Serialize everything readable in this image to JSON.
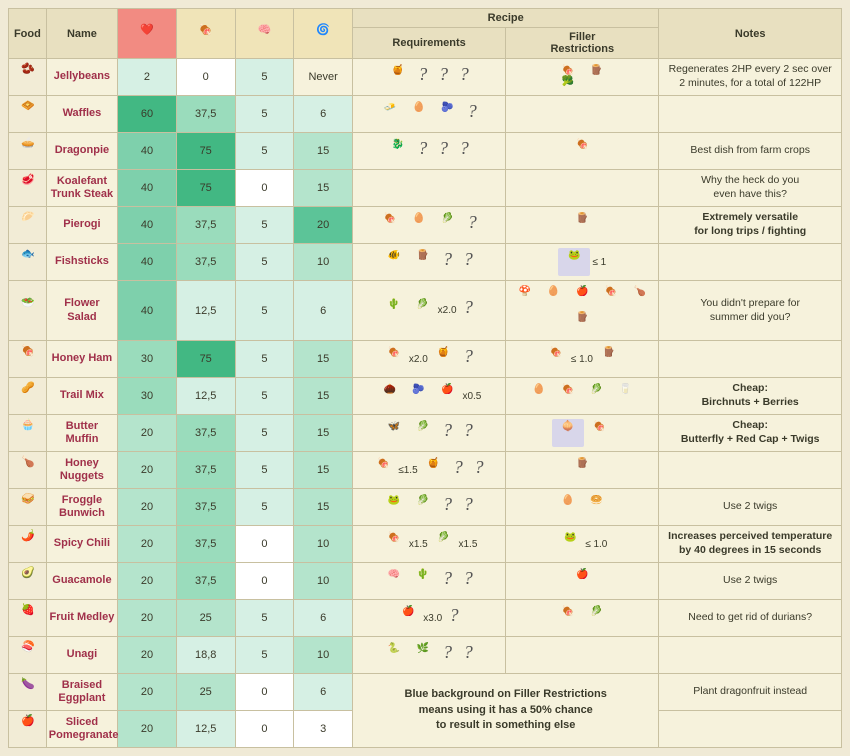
{
  "headers": {
    "food": "Food",
    "name": "Name",
    "recipe": "Recipe",
    "requirements": "Requirements",
    "filler_restrictions": "Filler\nRestrictions",
    "notes": "Notes"
  },
  "stat_icons": {
    "health": {
      "emoji": "❤️",
      "bg": "#f28b82"
    },
    "hunger": {
      "emoji": "🍖",
      "bg": "#f0e4b8"
    },
    "sanity": {
      "emoji": "🧠",
      "bg": "#f0e4b8"
    },
    "perish": {
      "emoji": "🌀",
      "bg": "#f0e4b8"
    }
  },
  "heat_palette": {
    "0": "#ffffff",
    "low": "#d6f0e4",
    "mid": "#b4e4cc",
    "midhigh": "#9adcbc",
    "high": "#7ed0ac",
    "vhigh": "#5cc498",
    "max": "#42b883"
  },
  "merged_note": "Blue background on Filler Restrictions\nmeans using it has a 50% chance\nto result in something else",
  "rows": [
    {
      "name": "Jellybeans",
      "food_icon": "🫘",
      "health": {
        "v": "2",
        "c": "#d6f0e4"
      },
      "hunger": {
        "v": "0",
        "c": "#ffffff"
      },
      "sanity": {
        "v": "5",
        "c": "#d6f0e4"
      },
      "perish": {
        "v": "Never",
        "c": "#f6f2dc"
      },
      "req": [
        {
          "i": "🍯"
        },
        {
          "q": 1
        },
        {
          "q": 1
        },
        {
          "q": 1
        }
      ],
      "res": [
        {
          "i": "🍖🥦"
        },
        {
          "i": "🪵"
        }
      ],
      "note": "Regenerates 2HP every 2 sec over 2 minutes, for a total of 122HP"
    },
    {
      "name": "Waffles",
      "food_icon": "🧇",
      "health": {
        "v": "60",
        "c": "#42b883"
      },
      "hunger": {
        "v": "37,5",
        "c": "#9adcbc"
      },
      "sanity": {
        "v": "5",
        "c": "#d6f0e4"
      },
      "perish": {
        "v": "6",
        "c": "#d6f0e4"
      },
      "req": [
        {
          "i": "🧈"
        },
        {
          "i": "🥚"
        },
        {
          "i": "🫐"
        },
        {
          "q": 1
        }
      ],
      "res": [],
      "note": ""
    },
    {
      "name": "Dragonpie",
      "food_icon": "🥧",
      "health": {
        "v": "40",
        "c": "#7ed0ac"
      },
      "hunger": {
        "v": "75",
        "c": "#42b883"
      },
      "sanity": {
        "v": "5",
        "c": "#d6f0e4"
      },
      "perish": {
        "v": "15",
        "c": "#b4e4cc"
      },
      "req": [
        {
          "i": "🐉"
        },
        {
          "q": 1
        },
        {
          "q": 1
        },
        {
          "q": 1
        }
      ],
      "res": [
        {
          "i": "🍖"
        }
      ],
      "note": "Best dish from farm crops"
    },
    {
      "name": "Koalefant Trunk Steak",
      "food_icon": "🥩",
      "health": {
        "v": "40",
        "c": "#7ed0ac"
      },
      "hunger": {
        "v": "75",
        "c": "#42b883"
      },
      "sanity": {
        "v": "0",
        "c": "#ffffff"
      },
      "perish": {
        "v": "15",
        "c": "#b4e4cc"
      },
      "req": [],
      "res": [],
      "note": "Why the heck do you\neven have this?"
    },
    {
      "name": "Pierogi",
      "food_icon": "🥟",
      "health": {
        "v": "40",
        "c": "#7ed0ac"
      },
      "hunger": {
        "v": "37,5",
        "c": "#9adcbc"
      },
      "sanity": {
        "v": "5",
        "c": "#d6f0e4"
      },
      "perish": {
        "v": "20",
        "c": "#5cc498"
      },
      "req": [
        {
          "i": "🍖"
        },
        {
          "i": "🥚"
        },
        {
          "i": "🥬"
        },
        {
          "q": 1
        }
      ],
      "res": [
        {
          "i": "🪵"
        }
      ],
      "note": "Extremely versatile\nfor long trips / fighting",
      "note_bold": true
    },
    {
      "name": "Fishsticks",
      "food_icon": "🐟",
      "health": {
        "v": "40",
        "c": "#7ed0ac"
      },
      "hunger": {
        "v": "37,5",
        "c": "#9adcbc"
      },
      "sanity": {
        "v": "5",
        "c": "#d6f0e4"
      },
      "perish": {
        "v": "10",
        "c": "#b4e4cc"
      },
      "req": [
        {
          "i": "🐠"
        },
        {
          "i": "🪵"
        },
        {
          "q": 1
        },
        {
          "q": 1
        }
      ],
      "res": [
        {
          "i": "🐸",
          "blue": true,
          "t": "≤ 1"
        }
      ],
      "note": ""
    },
    {
      "name": "Flower Salad",
      "food_icon": "🥗",
      "health": {
        "v": "40",
        "c": "#7ed0ac"
      },
      "hunger": {
        "v": "12,5",
        "c": "#d6f0e4"
      },
      "sanity": {
        "v": "5",
        "c": "#d6f0e4"
      },
      "perish": {
        "v": "6",
        "c": "#d6f0e4"
      },
      "req": [
        {
          "i": "🌵"
        },
        {
          "i": "🥬",
          "t": "x2.0"
        },
        {
          "q": 1
        }
      ],
      "res": [
        {
          "i": "🍄"
        },
        {
          "i": "🥚"
        },
        {
          "i": "🍎"
        },
        {
          "i": "🍖"
        },
        {
          "i": "🍗"
        },
        {
          "i": "🪵"
        }
      ],
      "note": "You didn't prepare for\nsummer did you?",
      "tall": true
    },
    {
      "name": "Honey Ham",
      "food_icon": "🍖",
      "health": {
        "v": "30",
        "c": "#9adcbc"
      },
      "hunger": {
        "v": "75",
        "c": "#42b883"
      },
      "sanity": {
        "v": "5",
        "c": "#d6f0e4"
      },
      "perish": {
        "v": "15",
        "c": "#b4e4cc"
      },
      "req": [
        {
          "i": "🍖",
          "t": "x2.0"
        },
        {
          "i": "🍯"
        },
        {
          "q": 1
        }
      ],
      "res": [
        {
          "i": "🍖",
          "t": "≤ 1.0"
        },
        {
          "i": "🪵"
        }
      ],
      "note": ""
    },
    {
      "name": "Trail Mix",
      "food_icon": "🥜",
      "health": {
        "v": "30",
        "c": "#9adcbc"
      },
      "hunger": {
        "v": "12,5",
        "c": "#d6f0e4"
      },
      "sanity": {
        "v": "5",
        "c": "#d6f0e4"
      },
      "perish": {
        "v": "15",
        "c": "#b4e4cc"
      },
      "req": [
        {
          "i": "🌰"
        },
        {
          "i": "🫐"
        },
        {
          "i": "🍎",
          "t": "x0.5"
        }
      ],
      "res": [
        {
          "i": "🥚"
        },
        {
          "i": "🍖"
        },
        {
          "i": "🥬"
        },
        {
          "i": "🥛"
        }
      ],
      "note": "Cheap:\nBirchnuts + Berries",
      "note_bold": true
    },
    {
      "name": "Butter Muffin",
      "food_icon": "🧁",
      "health": {
        "v": "20",
        "c": "#b4e4cc"
      },
      "hunger": {
        "v": "37,5",
        "c": "#9adcbc"
      },
      "sanity": {
        "v": "5",
        "c": "#d6f0e4"
      },
      "perish": {
        "v": "15",
        "c": "#b4e4cc"
      },
      "req": [
        {
          "i": "🦋"
        },
        {
          "i": "🥬"
        },
        {
          "q": 1
        },
        {
          "q": 1
        }
      ],
      "res": [
        {
          "i": "🧅",
          "blue": true
        },
        {
          "i": "🍖"
        }
      ],
      "note": "Cheap:\nButterfly + Red Cap + Twigs",
      "note_bold": true
    },
    {
      "name": "Honey Nuggets",
      "food_icon": "🍗",
      "health": {
        "v": "20",
        "c": "#b4e4cc"
      },
      "hunger": {
        "v": "37,5",
        "c": "#9adcbc"
      },
      "sanity": {
        "v": "5",
        "c": "#d6f0e4"
      },
      "perish": {
        "v": "15",
        "c": "#b4e4cc"
      },
      "req": [
        {
          "i": "🍖",
          "t": "≤1.5"
        },
        {
          "i": "🍯"
        },
        {
          "q": 1
        },
        {
          "q": 1
        }
      ],
      "res": [
        {
          "i": "🪵"
        }
      ],
      "note": ""
    },
    {
      "name": "Froggle Bunwich",
      "food_icon": "🥪",
      "health": {
        "v": "20",
        "c": "#b4e4cc"
      },
      "hunger": {
        "v": "37,5",
        "c": "#9adcbc"
      },
      "sanity": {
        "v": "5",
        "c": "#d6f0e4"
      },
      "perish": {
        "v": "15",
        "c": "#b4e4cc"
      },
      "req": [
        {
          "i": "🐸"
        },
        {
          "i": "🥬"
        },
        {
          "q": 1
        },
        {
          "q": 1
        }
      ],
      "res": [
        {
          "i": "🥚"
        },
        {
          "i": "🥯"
        }
      ],
      "note": "Use 2 twigs"
    },
    {
      "name": "Spicy Chili",
      "food_icon": "🌶️",
      "health": {
        "v": "20",
        "c": "#b4e4cc"
      },
      "hunger": {
        "v": "37,5",
        "c": "#9adcbc"
      },
      "sanity": {
        "v": "0",
        "c": "#ffffff"
      },
      "perish": {
        "v": "10",
        "c": "#b4e4cc"
      },
      "req": [
        {
          "i": "🍖",
          "t": "x1.5"
        },
        {
          "i": "🥬",
          "t": "x1.5"
        }
      ],
      "res": [
        {
          "i": "🐸",
          "t": "≤ 1.0"
        }
      ],
      "note": "Increases perceived temperature by 40 degrees in 15 seconds",
      "note_bold": true
    },
    {
      "name": "Guacamole",
      "food_icon": "🥑",
      "health": {
        "v": "20",
        "c": "#b4e4cc"
      },
      "hunger": {
        "v": "37,5",
        "c": "#9adcbc"
      },
      "sanity": {
        "v": "0",
        "c": "#ffffff"
      },
      "perish": {
        "v": "10",
        "c": "#b4e4cc"
      },
      "req": [
        {
          "i": "🧠"
        },
        {
          "i": "🌵"
        },
        {
          "q": 1
        },
        {
          "q": 1
        }
      ],
      "res": [
        {
          "i": "🍎"
        }
      ],
      "note": "Use 2 twigs"
    },
    {
      "name": "Fruit Medley",
      "food_icon": "🍓",
      "health": {
        "v": "20",
        "c": "#b4e4cc"
      },
      "hunger": {
        "v": "25",
        "c": "#b4e4cc"
      },
      "sanity": {
        "v": "5",
        "c": "#d6f0e4"
      },
      "perish": {
        "v": "6",
        "c": "#d6f0e4"
      },
      "req": [
        {
          "i": "🍎",
          "t": "x3.0"
        },
        {
          "q": 1
        }
      ],
      "res": [
        {
          "i": "🍖"
        },
        {
          "i": "🥬"
        }
      ],
      "note": "Need to get rid of durians?"
    },
    {
      "name": "Unagi",
      "food_icon": "🍣",
      "health": {
        "v": "20",
        "c": "#b4e4cc"
      },
      "hunger": {
        "v": "18,8",
        "c": "#d6f0e4"
      },
      "sanity": {
        "v": "5",
        "c": "#d6f0e4"
      },
      "perish": {
        "v": "10",
        "c": "#b4e4cc"
      },
      "req": [
        {
          "i": "🐍"
        },
        {
          "i": "🌿"
        },
        {
          "q": 1
        },
        {
          "q": 1
        }
      ],
      "res": [],
      "note": ""
    },
    {
      "name": "Braised Eggplant",
      "food_icon": "🍆",
      "health": {
        "v": "20",
        "c": "#b4e4cc"
      },
      "hunger": {
        "v": "25",
        "c": "#b4e4cc"
      },
      "sanity": {
        "v": "0",
        "c": "#ffffff"
      },
      "perish": {
        "v": "6",
        "c": "#d6f0e4"
      },
      "req": "MERGE",
      "res": "MERGE",
      "note": "Plant dragonfruit instead"
    },
    {
      "name": "Sliced Pomegranate",
      "food_icon": "🍎",
      "health": {
        "v": "20",
        "c": "#b4e4cc"
      },
      "hunger": {
        "v": "12,5",
        "c": "#d6f0e4"
      },
      "sanity": {
        "v": "0",
        "c": "#ffffff"
      },
      "perish": {
        "v": "3",
        "c": "#ffffff"
      },
      "req": "SKIP",
      "res": "SKIP",
      "note": ""
    }
  ]
}
